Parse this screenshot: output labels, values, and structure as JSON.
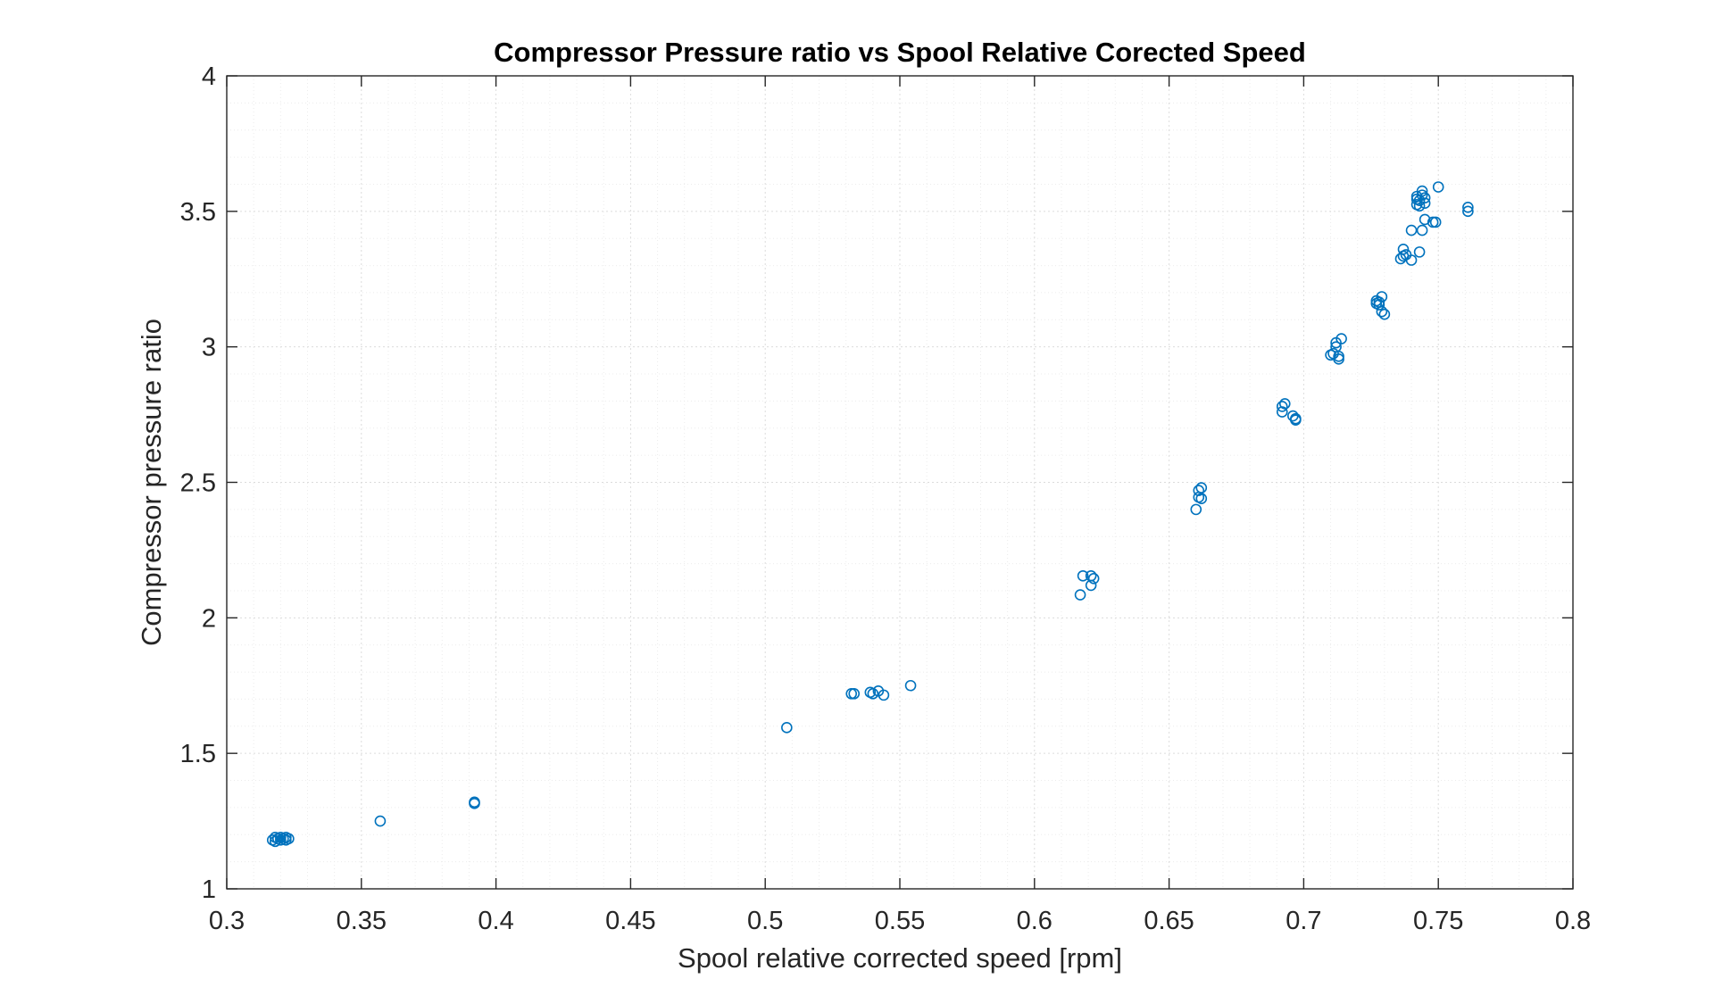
{
  "chart_data": {
    "type": "scatter",
    "title": "Compressor Pressure ratio vs Spool Relative Corected Speed",
    "xlabel": "Spool relative corrected speed [rpm]",
    "ylabel": "Compressor pressure ratio",
    "xlim": [
      0.3,
      0.8
    ],
    "ylim": [
      1,
      4
    ],
    "xticks": [
      0.3,
      0.35,
      0.4,
      0.45,
      0.5,
      0.55,
      0.6,
      0.65,
      0.7,
      0.75,
      0.8
    ],
    "xtick_labels": [
      "0.3",
      "0.35",
      "0.4",
      "0.45",
      "0.5",
      "0.55",
      "0.6",
      "0.65",
      "0.7",
      "0.75",
      "0.8"
    ],
    "yticks": [
      1,
      1.5,
      2,
      2.5,
      3,
      3.5,
      4
    ],
    "ytick_labels": [
      "1",
      "1.5",
      "2",
      "2.5",
      "3",
      "3.5",
      "4"
    ],
    "grid": true,
    "minor_grid": true,
    "marker": "open-circle",
    "color": "#0072BD",
    "series": [
      {
        "points": [
          [
            0.317,
            1.18
          ],
          [
            0.318,
            1.19
          ],
          [
            0.318,
            1.175
          ],
          [
            0.319,
            1.185
          ],
          [
            0.32,
            1.18
          ],
          [
            0.32,
            1.19
          ],
          [
            0.321,
            1.185
          ],
          [
            0.322,
            1.19
          ],
          [
            0.322,
            1.18
          ],
          [
            0.323,
            1.185
          ],
          [
            0.357,
            1.25
          ],
          [
            0.392,
            1.32
          ],
          [
            0.392,
            1.315
          ],
          [
            0.508,
            1.595
          ],
          [
            0.532,
            1.72
          ],
          [
            0.533,
            1.72
          ],
          [
            0.539,
            1.725
          ],
          [
            0.54,
            1.72
          ],
          [
            0.542,
            1.73
          ],
          [
            0.544,
            1.715
          ],
          [
            0.554,
            1.75
          ],
          [
            0.617,
            2.085
          ],
          [
            0.618,
            2.155
          ],
          [
            0.621,
            2.155
          ],
          [
            0.621,
            2.12
          ],
          [
            0.622,
            2.145
          ],
          [
            0.66,
            2.4
          ],
          [
            0.661,
            2.445
          ],
          [
            0.661,
            2.47
          ],
          [
            0.662,
            2.48
          ],
          [
            0.662,
            2.44
          ],
          [
            0.692,
            2.76
          ],
          [
            0.692,
            2.78
          ],
          [
            0.693,
            2.79
          ],
          [
            0.696,
            2.745
          ],
          [
            0.697,
            2.73
          ],
          [
            0.697,
            2.735
          ],
          [
            0.71,
            2.97
          ],
          [
            0.711,
            2.975
          ],
          [
            0.712,
            3.0
          ],
          [
            0.712,
            3.015
          ],
          [
            0.713,
            2.955
          ],
          [
            0.713,
            2.965
          ],
          [
            0.714,
            3.03
          ],
          [
            0.727,
            3.16
          ],
          [
            0.727,
            3.17
          ],
          [
            0.728,
            3.155
          ],
          [
            0.728,
            3.165
          ],
          [
            0.729,
            3.185
          ],
          [
            0.729,
            3.13
          ],
          [
            0.73,
            3.12
          ],
          [
            0.736,
            3.325
          ],
          [
            0.737,
            3.335
          ],
          [
            0.737,
            3.36
          ],
          [
            0.738,
            3.34
          ],
          [
            0.74,
            3.32
          ],
          [
            0.74,
            3.43
          ],
          [
            0.743,
            3.35
          ],
          [
            0.744,
            3.43
          ],
          [
            0.742,
            3.525
          ],
          [
            0.742,
            3.545
          ],
          [
            0.742,
            3.555
          ],
          [
            0.743,
            3.54
          ],
          [
            0.743,
            3.52
          ],
          [
            0.744,
            3.56
          ],
          [
            0.744,
            3.575
          ],
          [
            0.745,
            3.53
          ],
          [
            0.745,
            3.55
          ],
          [
            0.745,
            3.47
          ],
          [
            0.748,
            3.46
          ],
          [
            0.749,
            3.46
          ],
          [
            0.75,
            3.59
          ],
          [
            0.761,
            3.5
          ],
          [
            0.761,
            3.515
          ]
        ]
      }
    ]
  }
}
